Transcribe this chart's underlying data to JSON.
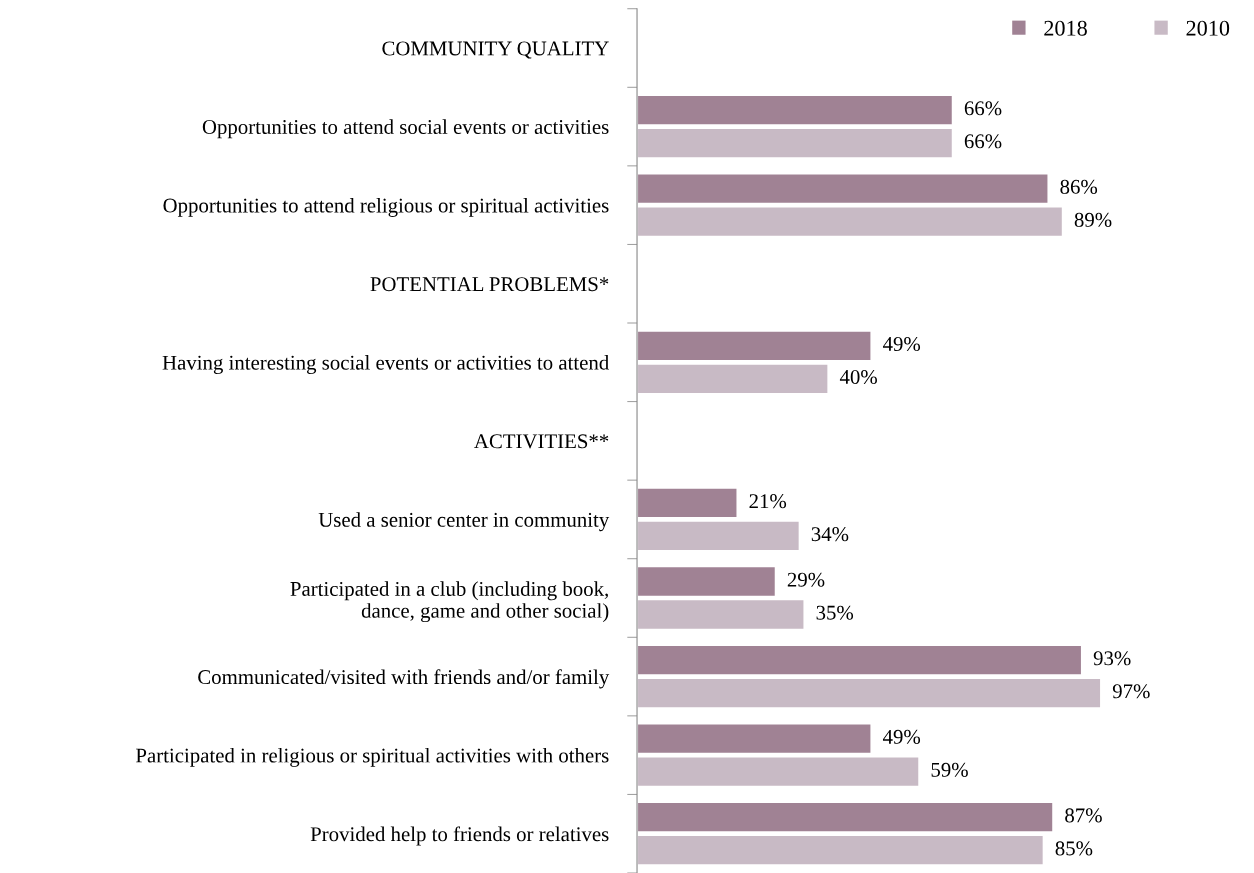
{
  "chart_data": {
    "type": "bar",
    "orientation": "horizontal",
    "legend": "top right",
    "grid": false,
    "categories": [
      "COMMUNITY QUALITY",
      "Opportunities to attend social events or activities",
      "Opportunities to attend religious or spiritual activities",
      "POTENTIAL PROBLEMS*",
      "Having interesting social events or activities to attend",
      "ACTIVITIES**",
      "Used a senior center in community",
      "Participated in a club (including book,\ndance, game and other social)",
      "Communicated/visited with friends and/or family",
      "Participated in religious or spiritual activities with others",
      "Provided help to friends or relatives"
    ],
    "series": [
      {
        "name": "2018",
        "color": "#a08294",
        "values": [
          null,
          66,
          86,
          null,
          49,
          null,
          21,
          29,
          93,
          49,
          87
        ],
        "value_labels": [
          null,
          "66%",
          "86%",
          null,
          "49%",
          null,
          "21%",
          "29%",
          "93%",
          "49%",
          "87%"
        ]
      },
      {
        "name": "2010",
        "color": "#c8bac5",
        "values": [
          null,
          66,
          89,
          null,
          40,
          null,
          34,
          35,
          97,
          59,
          85
        ],
        "value_labels": [
          null,
          "66%",
          "89%",
          null,
          "40%",
          null,
          "34%",
          "35%",
          "97%",
          "59%",
          "85%"
        ]
      }
    ]
  }
}
